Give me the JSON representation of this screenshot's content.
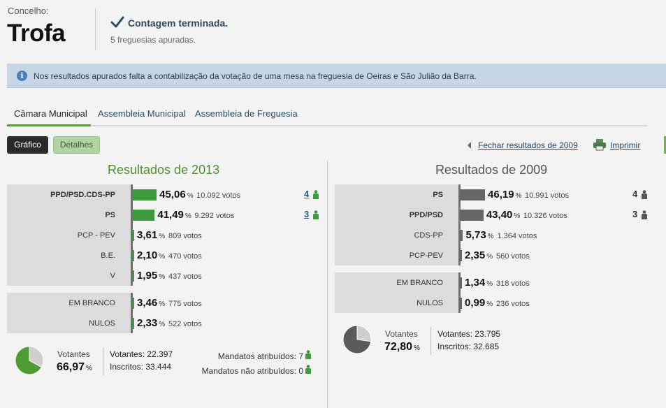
{
  "header": {
    "concelho_label": "Concelho:",
    "concelho_name": "Trofa",
    "status_title": "Contagem terminada.",
    "status_sub": "5 freguesias apuradas."
  },
  "info": {
    "text": "Nos resultados apurados falta a contabilização da votação de uma mesa na freguesia de Oeiras e São Julião da Barra."
  },
  "tabs": [
    {
      "label": "Câmara Municipal",
      "active": true
    },
    {
      "label": "Assembleia Municipal",
      "active": false
    },
    {
      "label": "Assembleia de Freguesia",
      "active": false
    }
  ],
  "toolbar": {
    "grafico": "Gráfico",
    "detalhes": "Detalhes",
    "fechar": "Fechar resultados de 2009",
    "imprimir": "Imprimir"
  },
  "r2013": {
    "title": "Resultados de 2013",
    "parties": [
      {
        "name": "PPD/PSD.CDS-PP",
        "pct": "45,06",
        "votes": "10.092 votos",
        "seats": "4",
        "pct_value": 45.06
      },
      {
        "name": "PS",
        "pct": "41,49",
        "votes": "9.292 votos",
        "seats": "3",
        "pct_value": 41.49
      },
      {
        "name": "PCP - PEV",
        "pct": "3,61",
        "votes": "809 votos",
        "seats": "",
        "pct_value": 3.61
      },
      {
        "name": "B.E.",
        "pct": "2,10",
        "votes": "470 votos",
        "seats": "",
        "pct_value": 2.1
      },
      {
        "name": "V",
        "pct": "1,95",
        "votes": "437 votos",
        "seats": "",
        "pct_value": 1.95
      }
    ],
    "others": [
      {
        "name": "EM BRANCO",
        "pct": "3,46",
        "votes": "775 votos",
        "pct_value": 3.46
      },
      {
        "name": "NULOS",
        "pct": "2,33",
        "votes": "522 votos",
        "pct_value": 2.33
      }
    ],
    "votantes_label": "Votantes",
    "votantes_pct": "66,97",
    "votantes_line": "Votantes: 22.397",
    "inscritos_line": "Inscritos: 33.444",
    "mandatos_atrib": "Mandatos atribuídos: 7",
    "mandatos_nao": "Mandatos não atribuídos: 0",
    "pie_fraction": 0.6697
  },
  "r2009": {
    "title": "Resultados de 2009",
    "parties": [
      {
        "name": "PS",
        "pct": "46,19",
        "votes": "10.991 votos",
        "seats": "4",
        "pct_value": 46.19
      },
      {
        "name": "PPD/PSD",
        "pct": "43,40",
        "votes": "10.326 votos",
        "seats": "3",
        "pct_value": 43.4
      },
      {
        "name": "CDS-PP",
        "pct": "5,73",
        "votes": "1.364 votos",
        "seats": "",
        "pct_value": 5.73
      },
      {
        "name": "PCP-PEV",
        "pct": "2,35",
        "votes": "560 votos",
        "seats": "",
        "pct_value": 2.35
      }
    ],
    "others": [
      {
        "name": "EM BRANCO",
        "pct": "1,34",
        "votes": "318 votos",
        "pct_value": 1.34
      },
      {
        "name": "NULOS",
        "pct": "0,99",
        "votes": "236 votos",
        "pct_value": 0.99
      }
    ],
    "votantes_label": "Votantes",
    "votantes_pct": "72,80",
    "votantes_line": "Votantes: 23.795",
    "inscritos_line": "Inscritos: 32.685",
    "pie_fraction": 0.728
  },
  "colors": {
    "green": "#3d9a3d",
    "gray": "#666666",
    "pie_green": "#4f9a32",
    "pie_gray": "#5a5a5a",
    "pie_bg": "#cfcfcf"
  }
}
